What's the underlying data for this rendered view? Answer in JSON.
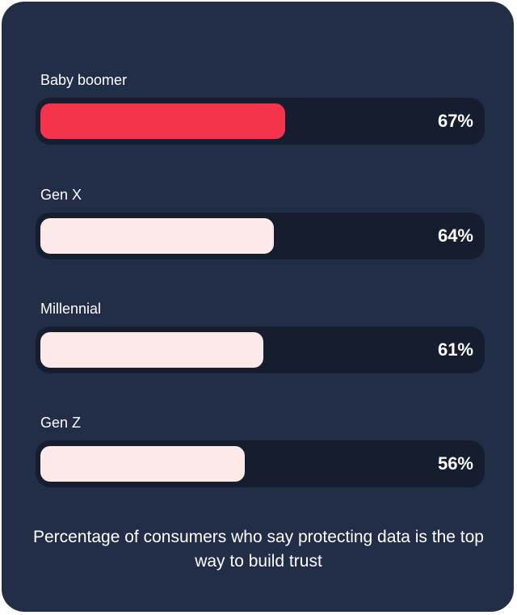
{
  "chart_data": {
    "type": "bar",
    "orientation": "horizontal",
    "categories": [
      "Baby boomer",
      "Gen X",
      "Millennial",
      "Gen Z"
    ],
    "values": [
      67,
      64,
      61,
      56
    ],
    "value_labels": [
      "67%",
      "64%",
      "61%",
      "56%"
    ],
    "xlim": [
      0,
      100
    ],
    "caption": "Percentage of consumers who say protecting data is the top way to build trust",
    "colors": {
      "background": "#222d48",
      "track": "#151d2e",
      "highlight": "#f5334b",
      "bar": "#fde9e8",
      "text": "#ffffff"
    },
    "highlight_index": 0
  }
}
